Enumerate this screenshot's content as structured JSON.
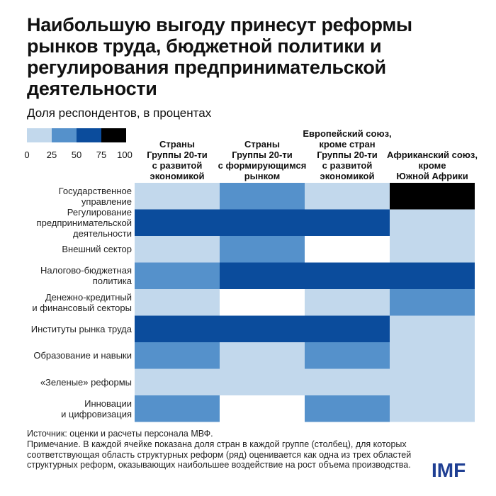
{
  "chart_data": {
    "type": "heatmap",
    "title": "Наибольшую выгоду принесут реформы рынков труда, бюджетной политики и регулирования предпринимательской деятельности",
    "subtitle": "Доля респондентов, в процентах",
    "legend": {
      "ticks": [
        "0",
        "25",
        "50",
        "75",
        "100"
      ],
      "bins": [
        {
          "range": [
            0,
            25
          ],
          "color": "#c2d8ec"
        },
        {
          "range": [
            25,
            50
          ],
          "color": "#5591cb"
        },
        {
          "range": [
            50,
            75
          ],
          "color": "#0b4c9c"
        },
        {
          "range": [
            75,
            100
          ],
          "color": "#000000"
        }
      ],
      "zero_color": "#ffffff"
    },
    "columns": [
      "Страны\nГруппы 20-ти\nс развитой\nэкономикой",
      "Страны\nГруппы 20-ти\nс формирующимся\nрынком",
      "Европейский союз,\nкроме стран\nГруппы 20-ти\nс развитой\nэкономикой",
      "Африканский союз,\nкроме\nЮжной Африки"
    ],
    "rows": [
      "Государственное\nуправление",
      "Регулирование\nпредпринимательской\nдеятельности",
      "Внешний сектор",
      "Налогово-бюджетная\nполитика",
      "Денежно-кредитный\nи финансовый секторы",
      "Институты рынка труда",
      "Образование и навыки",
      "«Зеленые» реформы",
      "Инновации\nи цифровизация"
    ],
    "values": [
      [
        15,
        40,
        15,
        90
      ],
      [
        65,
        65,
        65,
        15
      ],
      [
        15,
        40,
        0,
        15
      ],
      [
        40,
        65,
        65,
        65
      ],
      [
        15,
        0,
        15,
        40
      ],
      [
        65,
        65,
        65,
        15
      ],
      [
        40,
        15,
        40,
        15
      ],
      [
        15,
        15,
        15,
        15
      ],
      [
        40,
        0,
        40,
        15
      ]
    ]
  },
  "footer": {
    "source": "Источник: оценки и расчеты персонала МВФ.",
    "note": "Примечание. В каждой ячейке показана доля стран в каждой группе (столбец), для которых соответствующая область структурных реформ (ряд) оценивается как одна из трех областей структурных реформ, оказывающих наибольшее воздействие на рост объема производства."
  },
  "logo": {
    "text": "IMF",
    "color": "#1f3f93"
  }
}
